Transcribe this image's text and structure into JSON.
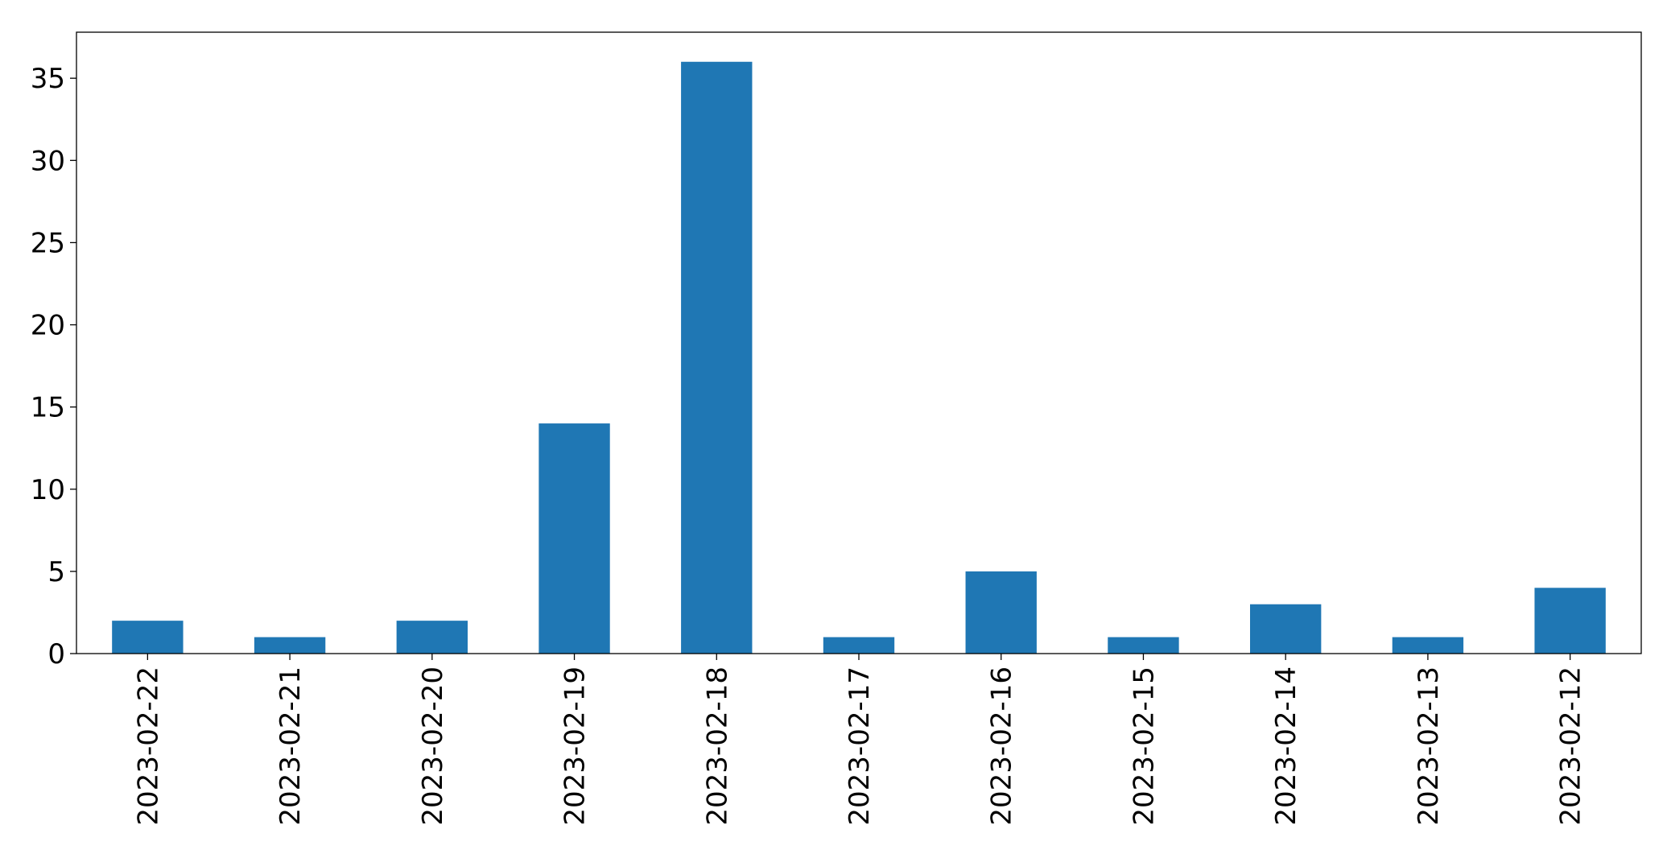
{
  "chart_data": {
    "type": "bar",
    "title": "",
    "xlabel": "",
    "ylabel": "",
    "categories": [
      "2023-02-22",
      "2023-02-21",
      "2023-02-20",
      "2023-02-19",
      "2023-02-18",
      "2023-02-17",
      "2023-02-16",
      "2023-02-15",
      "2023-02-14",
      "2023-02-13",
      "2023-02-12"
    ],
    "values": [
      2,
      1,
      2,
      14,
      36,
      1,
      5,
      1,
      3,
      1,
      4
    ],
    "ylim": [
      0,
      37.8
    ],
    "yticks": [
      0,
      5,
      10,
      15,
      20,
      25,
      30,
      35
    ],
    "ytick_labels": [
      "0",
      "5",
      "10",
      "15",
      "20",
      "25",
      "30",
      "35"
    ],
    "bar_color": "#1f77b4",
    "grid": false,
    "legend": "none"
  }
}
